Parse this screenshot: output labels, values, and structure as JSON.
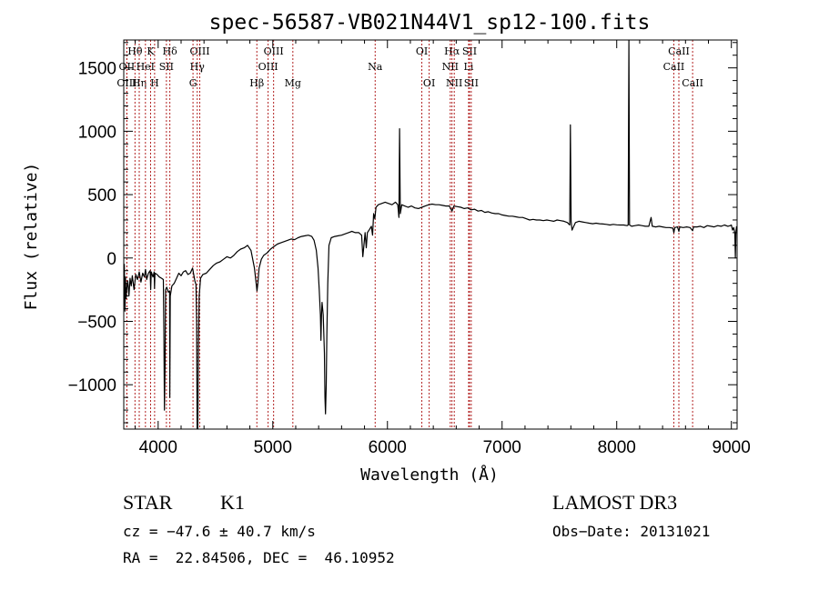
{
  "chart_data": {
    "type": "line",
    "title": "spec-56587-VB021N44V1_sp12-100.fits",
    "xlabel": "Wavelength (Å)",
    "ylabel": "Flux (relative)",
    "xlim": [
      3700,
      9050
    ],
    "ylim": [
      -1350,
      1720
    ],
    "x_ticks": [
      4000,
      5000,
      6000,
      7000,
      8000,
      9000
    ],
    "y_ticks": [
      -1000,
      -500,
      0,
      500,
      1000,
      1500
    ],
    "series": [
      {
        "name": "spectrum",
        "points": [
          [
            3700,
            -300
          ],
          [
            3705,
            -50
          ],
          [
            3710,
            -420
          ],
          [
            3715,
            -150
          ],
          [
            3720,
            -320
          ],
          [
            3728,
            -230
          ],
          [
            3735,
            -180
          ],
          [
            3745,
            -300
          ],
          [
            3755,
            -160
          ],
          [
            3765,
            -220
          ],
          [
            3775,
            -140
          ],
          [
            3790,
            -250
          ],
          [
            3805,
            -130
          ],
          [
            3820,
            -170
          ],
          [
            3835,
            -110
          ],
          [
            3850,
            -190
          ],
          [
            3865,
            -120
          ],
          [
            3880,
            -150
          ],
          [
            3890,
            -90
          ],
          [
            3900,
            -170
          ],
          [
            3915,
            -120
          ],
          [
            3930,
            -100
          ],
          [
            3935,
            -250
          ],
          [
            3940,
            -110
          ],
          [
            3955,
            -150
          ],
          [
            3965,
            -110
          ],
          [
            3968,
            -240
          ],
          [
            3972,
            -120
          ],
          [
            3990,
            -130
          ],
          [
            4010,
            -150
          ],
          [
            4030,
            -160
          ],
          [
            4045,
            -170
          ],
          [
            4050,
            -600
          ],
          [
            4055,
            -1200
          ],
          [
            4060,
            -850
          ],
          [
            4065,
            -250
          ],
          [
            4075,
            -230
          ],
          [
            4090,
            -270
          ],
          [
            4100,
            -260
          ],
          [
            4102,
            -1100
          ],
          [
            4106,
            -300
          ],
          [
            4120,
            -220
          ],
          [
            4140,
            -200
          ],
          [
            4160,
            -160
          ],
          [
            4180,
            -120
          ],
          [
            4200,
            -140
          ],
          [
            4220,
            -110
          ],
          [
            4240,
            -100
          ],
          [
            4260,
            -130
          ],
          [
            4280,
            -120
          ],
          [
            4300,
            -80
          ],
          [
            4320,
            -180
          ],
          [
            4330,
            -210
          ],
          [
            4336,
            -500
          ],
          [
            4340,
            -1350
          ],
          [
            4346,
            -1350
          ],
          [
            4352,
            -700
          ],
          [
            4358,
            -300
          ],
          [
            4370,
            -160
          ],
          [
            4390,
            -130
          ],
          [
            4420,
            -120
          ],
          [
            4450,
            -90
          ],
          [
            4480,
            -60
          ],
          [
            4510,
            -40
          ],
          [
            4540,
            -30
          ],
          [
            4570,
            -10
          ],
          [
            4600,
            10
          ],
          [
            4630,
            0
          ],
          [
            4660,
            20
          ],
          [
            4690,
            50
          ],
          [
            4720,
            70
          ],
          [
            4750,
            80
          ],
          [
            4780,
            100
          ],
          [
            4810,
            60
          ],
          [
            4840,
            -80
          ],
          [
            4855,
            -200
          ],
          [
            4862,
            -260
          ],
          [
            4870,
            -200
          ],
          [
            4880,
            -80
          ],
          [
            4900,
            -10
          ],
          [
            4920,
            20
          ],
          [
            4950,
            40
          ],
          [
            4980,
            70
          ],
          [
            5010,
            90
          ],
          [
            5040,
            110
          ],
          [
            5070,
            120
          ],
          [
            5100,
            130
          ],
          [
            5130,
            140
          ],
          [
            5160,
            150
          ],
          [
            5190,
            145
          ],
          [
            5220,
            160
          ],
          [
            5250,
            170
          ],
          [
            5280,
            175
          ],
          [
            5310,
            180
          ],
          [
            5340,
            170
          ],
          [
            5360,
            140
          ],
          [
            5380,
            60
          ],
          [
            5395,
            -80
          ],
          [
            5405,
            -250
          ],
          [
            5415,
            -450
          ],
          [
            5420,
            -650
          ],
          [
            5425,
            -450
          ],
          [
            5430,
            -350
          ],
          [
            5440,
            -450
          ],
          [
            5450,
            -750
          ],
          [
            5455,
            -1100
          ],
          [
            5460,
            -1230
          ],
          [
            5466,
            -1000
          ],
          [
            5472,
            -600
          ],
          [
            5480,
            -200
          ],
          [
            5490,
            100
          ],
          [
            5510,
            160
          ],
          [
            5540,
            170
          ],
          [
            5570,
            175
          ],
          [
            5600,
            180
          ],
          [
            5630,
            190
          ],
          [
            5660,
            200
          ],
          [
            5690,
            210
          ],
          [
            5720,
            200
          ],
          [
            5750,
            200
          ],
          [
            5775,
            180
          ],
          [
            5785,
            10
          ],
          [
            5795,
            100
          ],
          [
            5805,
            200
          ],
          [
            5815,
            80
          ],
          [
            5825,
            200
          ],
          [
            5840,
            220
          ],
          [
            5860,
            250
          ],
          [
            5870,
            180
          ],
          [
            5880,
            350
          ],
          [
            5890,
            310
          ],
          [
            5900,
            400
          ],
          [
            5920,
            420
          ],
          [
            5950,
            430
          ],
          [
            5980,
            440
          ],
          [
            6010,
            430
          ],
          [
            6040,
            420
          ],
          [
            6070,
            440
          ],
          [
            6090,
            420
          ],
          [
            6100,
            320
          ],
          [
            6106,
            1020
          ],
          [
            6112,
            350
          ],
          [
            6125,
            420
          ],
          [
            6150,
            410
          ],
          [
            6180,
            400
          ],
          [
            6210,
            410
          ],
          [
            6240,
            395
          ],
          [
            6270,
            390
          ],
          [
            6300,
            400
          ],
          [
            6330,
            410
          ],
          [
            6360,
            420
          ],
          [
            6390,
            425
          ],
          [
            6420,
            420
          ],
          [
            6450,
            420
          ],
          [
            6480,
            415
          ],
          [
            6510,
            410
          ],
          [
            6540,
            410
          ],
          [
            6563,
            370
          ],
          [
            6580,
            410
          ],
          [
            6610,
            405
          ],
          [
            6640,
            400
          ],
          [
            6670,
            390
          ],
          [
            6700,
            395
          ],
          [
            6730,
            380
          ],
          [
            6760,
            385
          ],
          [
            6790,
            370
          ],
          [
            6820,
            375
          ],
          [
            6850,
            360
          ],
          [
            6880,
            365
          ],
          [
            6910,
            355
          ],
          [
            6940,
            350
          ],
          [
            6970,
            350
          ],
          [
            7000,
            340
          ],
          [
            7030,
            335
          ],
          [
            7060,
            330
          ],
          [
            7090,
            330
          ],
          [
            7120,
            325
          ],
          [
            7150,
            320
          ],
          [
            7180,
            320
          ],
          [
            7210,
            310
          ],
          [
            7240,
            300
          ],
          [
            7270,
            305
          ],
          [
            7300,
            300
          ],
          [
            7330,
            300
          ],
          [
            7360,
            295
          ],
          [
            7390,
            300
          ],
          [
            7420,
            295
          ],
          [
            7450,
            290
          ],
          [
            7480,
            300
          ],
          [
            7510,
            295
          ],
          [
            7540,
            290
          ],
          [
            7570,
            280
          ],
          [
            7590,
            260
          ],
          [
            7596,
            1050
          ],
          [
            7602,
            290
          ],
          [
            7610,
            220
          ],
          [
            7640,
            280
          ],
          [
            7670,
            290
          ],
          [
            7700,
            285
          ],
          [
            7730,
            280
          ],
          [
            7760,
            275
          ],
          [
            7790,
            270
          ],
          [
            7820,
            275
          ],
          [
            7850,
            270
          ],
          [
            7880,
            268
          ],
          [
            7910,
            265
          ],
          [
            7940,
            260
          ],
          [
            7970,
            265
          ],
          [
            8000,
            262
          ],
          [
            8030,
            260
          ],
          [
            8060,
            260
          ],
          [
            8090,
            255
          ],
          [
            8100,
            260
          ],
          [
            8106,
            1720
          ],
          [
            8112,
            260
          ],
          [
            8130,
            250
          ],
          [
            8160,
            255
          ],
          [
            8190,
            260
          ],
          [
            8220,
            255
          ],
          [
            8250,
            250
          ],
          [
            8280,
            250
          ],
          [
            8300,
            320
          ],
          [
            8310,
            250
          ],
          [
            8340,
            245
          ],
          [
            8370,
            250
          ],
          [
            8400,
            245
          ],
          [
            8430,
            240
          ],
          [
            8460,
            240
          ],
          [
            8490,
            235
          ],
          [
            8498,
            200
          ],
          [
            8506,
            240
          ],
          [
            8530,
            245
          ],
          [
            8542,
            210
          ],
          [
            8550,
            245
          ],
          [
            8580,
            240
          ],
          [
            8610,
            245
          ],
          [
            8640,
            240
          ],
          [
            8662,
            215
          ],
          [
            8670,
            245
          ],
          [
            8700,
            245
          ],
          [
            8730,
            250
          ],
          [
            8760,
            240
          ],
          [
            8790,
            255
          ],
          [
            8820,
            250
          ],
          [
            8850,
            245
          ],
          [
            8880,
            255
          ],
          [
            8910,
            250
          ],
          [
            8940,
            260
          ],
          [
            8970,
            250
          ],
          [
            8990,
            255
          ],
          [
            9000,
            260
          ],
          [
            9010,
            220
          ],
          [
            9020,
            240
          ],
          [
            9030,
            200
          ],
          [
            9035,
            0
          ],
          [
            9040,
            200
          ],
          [
            9045,
            250
          ]
        ]
      }
    ],
    "annotation_lines": [
      {
        "label": "Hθ",
        "wavelength": 3798,
        "row": 1
      },
      {
        "label": "OII",
        "wavelength": 3727,
        "row": 2
      },
      {
        "label": "OIII",
        "wavelength": 3727,
        "row": 3
      },
      {
        "label": "Hη",
        "wavelength": 3835,
        "row": 3
      },
      {
        "label": "HeI",
        "wavelength": 3889,
        "row": 2
      },
      {
        "label": "K",
        "wavelength": 3934,
        "row": 1
      },
      {
        "label": "H",
        "wavelength": 3969,
        "row": 3
      },
      {
        "label": "SII",
        "wavelength": 4072,
        "row": 2
      },
      {
        "label": "Hδ",
        "wavelength": 4102,
        "row": 1
      },
      {
        "label": "OIII",
        "wavelength": 4363,
        "row": 1
      },
      {
        "label": "Hγ",
        "wavelength": 4341,
        "row": 2
      },
      {
        "label": "G",
        "wavelength": 4304,
        "row": 3
      },
      {
        "label": "Hβ",
        "wavelength": 4861,
        "row": 3
      },
      {
        "label": "OIII",
        "wavelength": 5007,
        "row": 1
      },
      {
        "label": "OIII",
        "wavelength": 4959,
        "row": 2
      },
      {
        "label": "Mg",
        "wavelength": 5175,
        "row": 3
      },
      {
        "label": "Na",
        "wavelength": 5893,
        "row": 2
      },
      {
        "label": "OI",
        "wavelength": 6300,
        "row": 1
      },
      {
        "label": "OI",
        "wavelength": 6364,
        "row": 3
      },
      {
        "label": "Hα",
        "wavelength": 6563,
        "row": 1
      },
      {
        "label": "NII",
        "wavelength": 6548,
        "row": 2
      },
      {
        "label": "NII",
        "wavelength": 6583,
        "row": 3
      },
      {
        "label": "SII",
        "wavelength": 6716,
        "row": 1
      },
      {
        "label": "Li",
        "wavelength": 6708,
        "row": 2
      },
      {
        "label": "SII",
        "wavelength": 6731,
        "row": 3
      },
      {
        "label": "CaII",
        "wavelength": 8542,
        "row": 1
      },
      {
        "label": "CaII",
        "wavelength": 8498,
        "row": 2
      },
      {
        "label": "CaII",
        "wavelength": 8662,
        "row": 3
      }
    ],
    "colors": {
      "annotation": "#b22222",
      "spectrum": "#000000"
    }
  },
  "footer": {
    "class_label": "STAR",
    "subclass": "K1",
    "survey": "LAMOST DR3",
    "redshift": "cz = −47.6 ± 40.7 km/s",
    "obs_date": "Obs−Date: 20131021",
    "coords": "RA =  22.84506, DEC =  46.10952"
  }
}
